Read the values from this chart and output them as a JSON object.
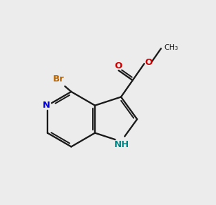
{
  "bg_color": "#ececec",
  "bond_color": "#1a1a1a",
  "N_pyr_color": "#0000dd",
  "N_H_color": "#008888",
  "O_color": "#cc0000",
  "Br_color": "#bb6600",
  "lw": 1.7,
  "doff": 0.09,
  "trim": 0.13,
  "hcx": 3.7,
  "hcy": 4.8,
  "r6": 1.15,
  "fs": 9.5
}
